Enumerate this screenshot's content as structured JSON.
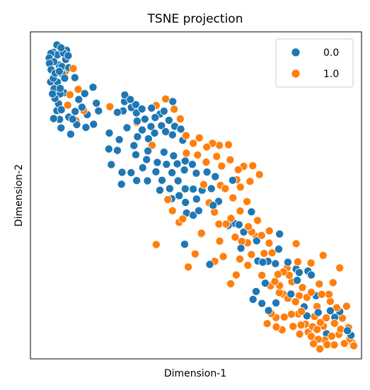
{
  "chart_data": {
    "type": "scatter",
    "title": "TSNE projection",
    "xlabel": "Dimension-1",
    "ylabel": "Dimension-2",
    "xlim": [
      -60,
      60
    ],
    "ylim": [
      -55,
      60
    ],
    "x_ticks_visible": false,
    "y_ticks_visible": false,
    "grid": false,
    "legend_position": "top-right",
    "series": [
      {
        "name": "0.0",
        "color": "#1f77b4",
        "points": [
          [
            -51.7,
            52.8
          ],
          [
            -50.4,
            55.4
          ],
          [
            -52.6,
            52.4
          ],
          [
            -48.9,
            54.4
          ],
          [
            -53.1,
            48.9
          ],
          [
            -50.2,
            51.9
          ],
          [
            -48.1,
            52.6
          ],
          [
            -51.5,
            49.5
          ],
          [
            -46.9,
            53.5
          ],
          [
            -47.2,
            50.3
          ],
          [
            -53.2,
            50.8
          ],
          [
            -49.6,
            48.3
          ],
          [
            -51.0,
            45.5
          ],
          [
            -48.6,
            47.8
          ],
          [
            -46.3,
            51.6
          ],
          [
            -52.5,
            46.7
          ],
          [
            -51.7,
            43.7
          ],
          [
            -49.5,
            46.1
          ],
          [
            -48.5,
            45.2
          ],
          [
            -50.2,
            42.3
          ],
          [
            -49.2,
            40.1
          ],
          [
            -51.4,
            40.0
          ],
          [
            -52.7,
            42.4
          ],
          [
            -47.6,
            43.7
          ],
          [
            -46.1,
            47.4
          ],
          [
            -52.0,
            38.2
          ],
          [
            -49.2,
            38.2
          ],
          [
            -47.8,
            38.6
          ],
          [
            -51.1,
            36.6
          ],
          [
            -49.8,
            34.7
          ],
          [
            -50.4,
            32.3
          ],
          [
            -48.8,
            32.6
          ],
          [
            -51.6,
            29.5
          ],
          [
            -49.4,
            29.2
          ],
          [
            -46.1,
            30.0
          ],
          [
            -43.8,
            32.0
          ],
          [
            -44.7,
            29.3
          ],
          [
            -43.2,
            27.4
          ],
          [
            -41.3,
            33.5
          ],
          [
            -40.3,
            38.3
          ],
          [
            -42.5,
            36.2
          ],
          [
            -39.4,
            30.9
          ],
          [
            -39.9,
            26.4
          ],
          [
            -36.1,
            34.9
          ],
          [
            -35.3,
            32.2
          ],
          [
            -45.4,
            24.0
          ],
          [
            -48.9,
            26.2
          ],
          [
            -43.9,
            43.9
          ],
          [
            -37.3,
            40.5
          ],
          [
            -37.1,
            27.5
          ],
          [
            -28.5,
            31.7
          ],
          [
            -26.4,
            32.2
          ],
          [
            -25.8,
            37.8
          ],
          [
            -23.8,
            36.2
          ],
          [
            -23.4,
            33.4
          ],
          [
            -25.9,
            35.5
          ],
          [
            -21.8,
            34.4
          ],
          [
            -21.6,
            31.5
          ],
          [
            -19.6,
            32.9
          ],
          [
            -18.5,
            29.3
          ],
          [
            -21.3,
            28.6
          ],
          [
            -16.1,
            33.2
          ],
          [
            -16.3,
            26.7
          ],
          [
            -13.0,
            31.1
          ],
          [
            -14.8,
            29.9
          ],
          [
            -11.6,
            32.1
          ],
          [
            -12.5,
            27.0
          ],
          [
            -9.8,
            28.9
          ],
          [
            -11.0,
            24.9
          ],
          [
            -15.0,
            24.4
          ],
          [
            -7.7,
            26.8
          ],
          [
            -8.5,
            23.8
          ],
          [
            -5.5,
            25.8
          ],
          [
            -4.8,
            21.9
          ],
          [
            -19.5,
            25.5
          ],
          [
            -21.2,
            23.1
          ],
          [
            -17.2,
            22.4
          ],
          [
            -22.5,
            20.0
          ],
          [
            -17.4,
            18.1
          ],
          [
            -21.8,
            16.8
          ],
          [
            -17.9,
            15.1
          ],
          [
            -19.3,
            12.2
          ],
          [
            -14.0,
            14.1
          ],
          [
            -14.5,
            10.8
          ],
          [
            -11.6,
            17.7
          ],
          [
            -10.7,
            13.4
          ],
          [
            -8.7,
            10.5
          ],
          [
            -8.1,
            16.4
          ],
          [
            -6.8,
            13.6
          ],
          [
            -3.9,
            14.6
          ],
          [
            -4.2,
            11.4
          ],
          [
            -1.3,
            13.4
          ],
          [
            0.1,
            10.3
          ],
          [
            -31.6,
            18.8
          ],
          [
            -27.8,
            22.1
          ],
          [
            -30.7,
            13.3
          ],
          [
            -26.8,
            10.6
          ],
          [
            -23.5,
            10.5
          ],
          [
            -27.0,
            6.4
          ],
          [
            -21.5,
            7.7
          ],
          [
            -17.6,
            7.6
          ],
          [
            -13.1,
            4.3
          ],
          [
            -12.3,
            7.8
          ],
          [
            -9.5,
            4.9
          ],
          [
            -8.8,
            1.3
          ],
          [
            -6.5,
            7.6
          ],
          [
            -6.1,
            2.4
          ],
          [
            -3.9,
            4.8
          ],
          [
            -3.8,
            0.0
          ],
          [
            -1.0,
            4.7
          ],
          [
            0.2,
            1.2
          ],
          [
            2.2,
            4.3
          ],
          [
            -3.4,
            -3.7
          ],
          [
            1.0,
            -2.9
          ],
          [
            -4.1,
            -14.7
          ],
          [
            1.9,
            -11.1
          ],
          [
            5.6,
            4.9
          ],
          [
            6.2,
            -1.0
          ],
          [
            8.2,
            0.4
          ],
          [
            7.0,
            9.1
          ],
          [
            11.7,
            -8.1
          ],
          [
            13.9,
            -7.3
          ],
          [
            15.6,
            -7.8
          ],
          [
            17.3,
            -10.4
          ],
          [
            16.3,
            -16.1
          ],
          [
            20.1,
            -3.3
          ],
          [
            22.0,
            -13.5
          ],
          [
            24.2,
            -21.0
          ],
          [
            26.1,
            -20.7
          ],
          [
            28.8,
            -21.5
          ],
          [
            30.3,
            -11.1
          ],
          [
            30.0,
            -16.4
          ],
          [
            33.3,
            -21.0
          ],
          [
            34.4,
            -32.2
          ],
          [
            36.3,
            -23.4
          ],
          [
            36.7,
            -27.4
          ],
          [
            25.1,
            -28.4
          ],
          [
            23.9,
            -35.5
          ],
          [
            26.3,
            -38.0
          ],
          [
            29.0,
            -35.3
          ],
          [
            21.8,
            -31.3
          ],
          [
            20.7,
            -34.1
          ],
          [
            40.6,
            -24.1
          ],
          [
            43.5,
            -32.8
          ],
          [
            39.2,
            -36.7
          ],
          [
            40.2,
            -39.9
          ],
          [
            44.3,
            -38.7
          ],
          [
            48.7,
            -38.1
          ],
          [
            50.3,
            -40.4
          ],
          [
            54.9,
            -45.1
          ],
          [
            52.1,
            -38.4
          ],
          [
            47.3,
            -46.2
          ],
          [
            56.2,
            -46.7
          ],
          [
            41.8,
            -25.5
          ],
          [
            -8.4,
            35.5
          ],
          [
            -25.0,
            26.3
          ],
          [
            -31.4,
            24.4
          ],
          [
            -28.5,
            18.3
          ],
          [
            -1.0,
            -4.5
          ],
          [
            4.0,
            10.7
          ],
          [
            13.3,
            7.8
          ],
          [
            22.4,
            -20.6
          ],
          [
            5.0,
            -21.8
          ],
          [
            37.4,
            -24.6
          ]
        ]
      },
      {
        "name": "1.0",
        "color": "#ff7f0e",
        "points": [
          [
            -47.3,
            46.1
          ],
          [
            -44.5,
            47.1
          ],
          [
            -46.5,
            34.2
          ],
          [
            -40.7,
            32.4
          ],
          [
            -31.2,
            33.7
          ],
          [
            -42.7,
            39.8
          ],
          [
            -14.4,
            34.1
          ],
          [
            -11.0,
            36.4
          ],
          [
            -7.9,
            32.8
          ],
          [
            -5.7,
            29.4
          ],
          [
            -3.6,
            23.5
          ],
          [
            1.2,
            22.7
          ],
          [
            3.9,
            19.5
          ],
          [
            6.0,
            20.8
          ],
          [
            8.5,
            20.1
          ],
          [
            11.8,
            20.3
          ],
          [
            -1.0,
            20.8
          ],
          [
            3.7,
            14.2
          ],
          [
            7.5,
            16.2
          ],
          [
            9.3,
            12.8
          ],
          [
            12.4,
            15.0
          ],
          [
            15.3,
            11.5
          ],
          [
            17.3,
            12.7
          ],
          [
            20.6,
            12.9
          ],
          [
            14.8,
            8.0
          ],
          [
            10.6,
            4.9
          ],
          [
            16.1,
            5.4
          ],
          [
            19.6,
            7.4
          ],
          [
            23.0,
            9.8
          ],
          [
            2.8,
            6.3
          ],
          [
            4.8,
            -0.1
          ],
          [
            8.9,
            6.0
          ],
          [
            -10.2,
            1.0
          ],
          [
            -6.1,
            -7.0
          ],
          [
            -4.8,
            -5.8
          ],
          [
            2.0,
            -10.8
          ],
          [
            -0.3,
            -18.1
          ],
          [
            -2.8,
            -22.7
          ],
          [
            6.7,
            -3.4
          ],
          [
            8.3,
            -7.6
          ],
          [
            10.9,
            -7.6
          ],
          [
            12.7,
            -5.6
          ],
          [
            8.6,
            -13.6
          ],
          [
            9.9,
            -19.0
          ],
          [
            14.2,
            -12.2
          ],
          [
            16.6,
            -13.7
          ],
          [
            18.7,
            -14.2
          ],
          [
            15.9,
            -19.9
          ],
          [
            14.6,
            -25.5
          ],
          [
            18.8,
            -22.1
          ],
          [
            21.8,
            -11.9
          ],
          [
            23.8,
            -11.6
          ],
          [
            22.3,
            -6.3
          ],
          [
            26.6,
            -10.0
          ],
          [
            26.5,
            -14.3
          ],
          [
            27.6,
            -17.7
          ],
          [
            29.7,
            -25.3
          ],
          [
            30.3,
            -29.2
          ],
          [
            31.6,
            -32.2
          ],
          [
            31.7,
            -24.4
          ],
          [
            33.8,
            -25.6
          ],
          [
            34.8,
            -27.9
          ],
          [
            36.9,
            -20.9
          ],
          [
            36.3,
            -14.5
          ],
          [
            33.0,
            -23.1
          ],
          [
            27.3,
            -39.1
          ],
          [
            25.8,
            -42.6
          ],
          [
            29.1,
            -43.8
          ],
          [
            31.2,
            -44.8
          ],
          [
            29.0,
            -40.5
          ],
          [
            32.0,
            -40.3
          ],
          [
            34.6,
            -39.3
          ],
          [
            37.1,
            -39.2
          ],
          [
            35.2,
            -43.6
          ],
          [
            37.6,
            -46.3
          ],
          [
            40.7,
            -45.6
          ],
          [
            38.1,
            -43.1
          ],
          [
            41.8,
            -47.1
          ],
          [
            44.3,
            -48.1
          ],
          [
            46.7,
            -48.4
          ],
          [
            46.2,
            -43.5
          ],
          [
            43.9,
            -44.7
          ],
          [
            49.2,
            -47.0
          ],
          [
            51.8,
            -46.4
          ],
          [
            53.8,
            -49.6
          ],
          [
            56.5,
            -49.1
          ],
          [
            50.1,
            -50.1
          ],
          [
            47.5,
            -50.0
          ],
          [
            44.9,
            -51.5
          ],
          [
            42.6,
            -49.7
          ],
          [
            42.3,
            -43.7
          ],
          [
            45.1,
            -42.2
          ],
          [
            47.2,
            -40.6
          ],
          [
            50.2,
            -42.5
          ],
          [
            52.4,
            -44.6
          ],
          [
            55.3,
            -44.0
          ],
          [
            53.1,
            -40.7
          ],
          [
            48.7,
            -34.8
          ],
          [
            49.7,
            -28.2
          ],
          [
            48.2,
            -32.3
          ],
          [
            45.6,
            -32.3
          ],
          [
            44.7,
            -28.7
          ],
          [
            41.7,
            -21.3
          ],
          [
            46.1,
            -18.6
          ],
          [
            52.1,
            -23.0
          ],
          [
            54.6,
            -36.5
          ],
          [
            55.8,
            -47.9
          ],
          [
            57.2,
            -50.4
          ],
          [
            40.2,
            -33.4
          ],
          [
            37.4,
            -32.8
          ],
          [
            38.6,
            -29.9
          ],
          [
            41.8,
            -31.6
          ],
          [
            43.9,
            -36.6
          ],
          [
            39.7,
            -42.8
          ],
          [
            36.1,
            -34.9
          ],
          [
            30.2,
            -31.7
          ],
          [
            27.0,
            -29.3
          ],
          [
            23.9,
            -25.6
          ],
          [
            24.7,
            -17.9
          ],
          [
            20.1,
            -18.3
          ],
          [
            19.0,
            -8.5
          ],
          [
            16.0,
            -3.0
          ],
          [
            18.5,
            0.3
          ],
          [
            13.4,
            1.6
          ],
          [
            0.6,
            16.7
          ],
          [
            -3.5,
            17.3
          ],
          [
            -15.9,
            20.1
          ],
          [
            -21.5,
            28.1
          ],
          [
            -45.7,
            37.9
          ],
          [
            -43.5,
            28.8
          ],
          [
            -8.5,
            -2.9
          ],
          [
            -14.4,
            -14.8
          ],
          [
            33.3,
            -33.7
          ],
          [
            38.2,
            -38.3
          ],
          [
            51.0,
            -37.0
          ],
          [
            43.0,
            -40.1
          ],
          [
            28.6,
            -27.8
          ],
          [
            20.2,
            -10.4
          ],
          [
            6.8,
            -20.7
          ],
          [
            12.6,
            -28.6
          ]
        ]
      }
    ]
  }
}
